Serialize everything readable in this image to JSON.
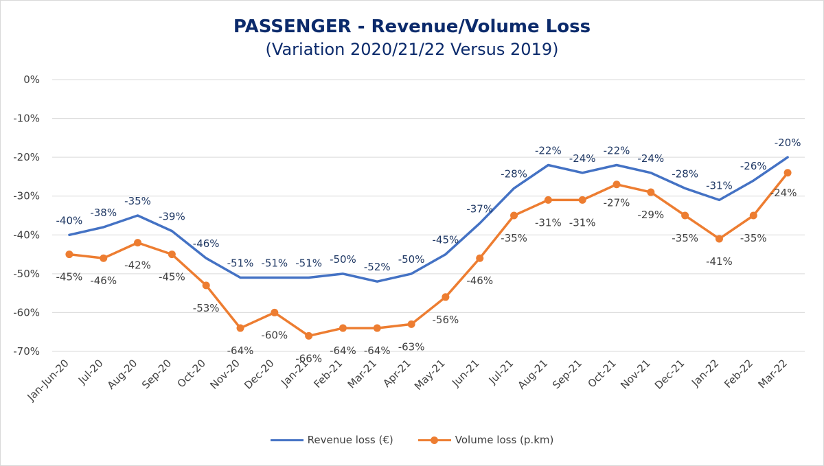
{
  "chart_data": {
    "type": "line",
    "title": "PASSENGER - Revenue/Volume Loss",
    "subtitle": "(Variation 2020/21/22 Versus 2019)",
    "xlabel": "",
    "ylabel": "",
    "ylim": [
      -70,
      0
    ],
    "yticks": [
      0,
      -10,
      -20,
      -30,
      -40,
      -50,
      -60,
      -70
    ],
    "ytick_labels": [
      "0%",
      "-10%",
      "-20%",
      "-30%",
      "-40%",
      "-50%",
      "-60%",
      "-70%"
    ],
    "grid": true,
    "legend_position": "bottom",
    "categories": [
      "Jan-Jun-20",
      "Jul-20",
      "Aug-20",
      "Sep-20",
      "Oct-20",
      "Nov-20",
      "Dec-20",
      "Jan-21",
      "Feb-21",
      "Mar-21",
      "Apr-21",
      "May-21",
      "Jun-21",
      "Jul-21",
      "Aug-21",
      "Sep-21",
      "Oct-21",
      "Nov-21",
      "Dec-21",
      "Jan-22",
      "Feb-22",
      "Mar-22"
    ],
    "series": [
      {
        "name": "Revenue loss (€)",
        "color": "#4472c4",
        "markers": false,
        "values": [
          -40,
          -38,
          -35,
          -39,
          -46,
          -51,
          -51,
          -51,
          -50,
          -52,
          -50,
          -45,
          -37,
          -28,
          -22,
          -24,
          -22,
          -24,
          -28,
          -31,
          -26,
          -20
        ],
        "labels": [
          "-40%",
          "-38%",
          "-35%",
          "-39%",
          "-46%",
          "-51%",
          "-51%",
          "-51%",
          "-50%",
          "-52%",
          "-50%",
          "-45%",
          "-37%",
          "-28%",
          "-22%",
          "-24%",
          "-22%",
          "-24%",
          "-28%",
          "-31%",
          "-26%",
          "-20%"
        ]
      },
      {
        "name": "Volume loss (p.km)",
        "color": "#ed7d31",
        "markers": true,
        "values": [
          -45,
          -46,
          -42,
          -45,
          -53,
          -64,
          -60,
          -66,
          -64,
          -64,
          -63,
          -56,
          -46,
          -35,
          -31,
          -31,
          -27,
          -29,
          -35,
          -41,
          -35,
          -24
        ],
        "labels": [
          "-45%",
          "-46%",
          "-42%",
          "-45%",
          "-53%",
          "-64%",
          "-60%",
          "-66%",
          "-64%",
          "-64%",
          "-63%",
          "-56%",
          "-46%",
          "-35%",
          "-31%",
          "-31%",
          "-27%",
          "-29%",
          "-35%",
          "-41%",
          "-35%",
          "-24%"
        ]
      }
    ]
  }
}
